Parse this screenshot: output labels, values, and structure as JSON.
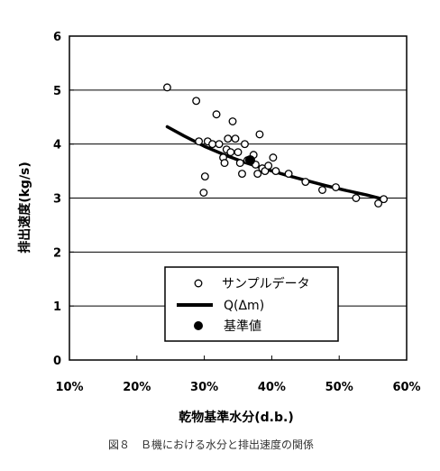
{
  "chart_data": {
    "type": "scatter",
    "caption": "図８　Ｂ機における水分と排出速度の関係",
    "xlabel": "乾物基準水分(d.b.)",
    "ylabel": "排出速度(kg/s)",
    "xlim": [
      10,
      60
    ],
    "ylim": [
      0,
      6
    ],
    "x_tick_labels": [
      "10%",
      "20%",
      "30%",
      "40%",
      "50%",
      "60%"
    ],
    "y_tick_labels": [
      "0",
      "1",
      "2",
      "3",
      "4",
      "5",
      "6"
    ],
    "grid": "horizontal",
    "legend_position": "bottom-right",
    "series": [
      {
        "name": "サンプルデータ",
        "marker": "open-circle",
        "points": [
          [
            24.5,
            5.05
          ],
          [
            28.8,
            4.8
          ],
          [
            29.2,
            4.05
          ],
          [
            30.5,
            4.05
          ],
          [
            31.2,
            4.0
          ],
          [
            31.8,
            4.55
          ],
          [
            32.2,
            4.0
          ],
          [
            32.8,
            3.75
          ],
          [
            33.3,
            3.9
          ],
          [
            33.0,
            3.65
          ],
          [
            33.5,
            4.1
          ],
          [
            33.9,
            3.85
          ],
          [
            34.2,
            4.42
          ],
          [
            34.6,
            4.1
          ],
          [
            35.0,
            3.85
          ],
          [
            35.3,
            3.65
          ],
          [
            35.6,
            3.45
          ],
          [
            36.0,
            4.0
          ],
          [
            36.4,
            3.7
          ],
          [
            37.3,
            3.8
          ],
          [
            37.6,
            3.62
          ],
          [
            37.9,
            3.45
          ],
          [
            38.2,
            4.18
          ],
          [
            38.6,
            3.55
          ],
          [
            39.0,
            3.5
          ],
          [
            39.5,
            3.6
          ],
          [
            40.2,
            3.75
          ],
          [
            40.6,
            3.5
          ],
          [
            42.5,
            3.45
          ],
          [
            45.0,
            3.3
          ],
          [
            47.5,
            3.15
          ],
          [
            49.5,
            3.2
          ],
          [
            52.5,
            3.0
          ],
          [
            55.8,
            2.9
          ],
          [
            56.6,
            2.98
          ],
          [
            30.1,
            3.4
          ],
          [
            29.9,
            3.1
          ]
        ]
      },
      {
        "name": "Q(Δm)",
        "marker": "line",
        "color": "#000000",
        "points": [
          [
            24.5,
            4.32
          ],
          [
            27.0,
            4.15
          ],
          [
            30.0,
            3.96
          ],
          [
            33.0,
            3.8
          ],
          [
            36.0,
            3.66
          ],
          [
            39.0,
            3.54
          ],
          [
            42.0,
            3.43
          ],
          [
            45.0,
            3.33
          ],
          [
            48.0,
            3.23
          ],
          [
            51.0,
            3.14
          ],
          [
            54.0,
            3.06
          ],
          [
            56.5,
            2.98
          ]
        ]
      },
      {
        "name": "基準値",
        "marker": "filled-circle",
        "points": [
          [
            36.8,
            3.7
          ]
        ]
      }
    ]
  }
}
